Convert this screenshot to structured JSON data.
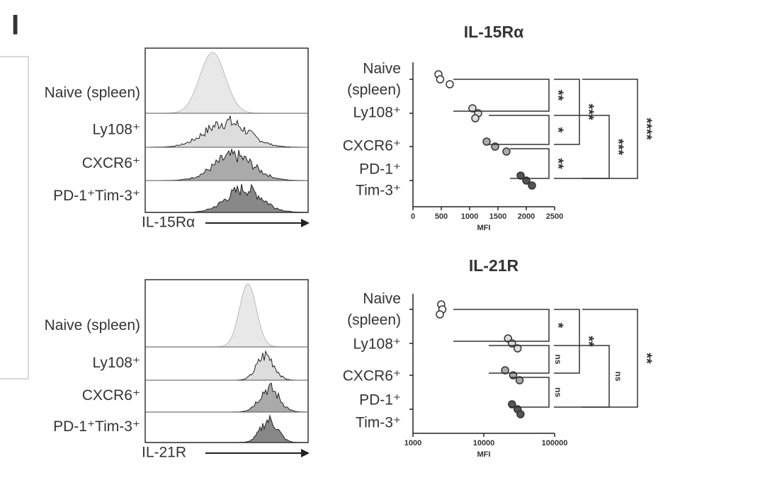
{
  "panel_label": "I",
  "histograms": [
    {
      "labels": [
        "Naive (spleen)",
        "Ly108⁺",
        "CXCR6⁺",
        "PD-1⁺Tim-3⁺"
      ],
      "axis_label": "IL-15Rα"
    },
    {
      "labels": [
        "Naive (spleen)",
        "Ly108⁺",
        "CXCR6⁺",
        "PD-1⁺Tim-3⁺"
      ],
      "axis_label": "IL-21R"
    }
  ],
  "chart_data": [
    {
      "type": "dot",
      "title": "IL-15Rα",
      "categories": [
        [
          "Naive",
          "(spleen)"
        ],
        [
          "Ly108⁺"
        ],
        [
          "CXCR6⁺"
        ],
        [
          "PD-1⁺",
          "Tim-3⁺"
        ]
      ],
      "values": [
        [
          450,
          480,
          650
        ],
        [
          1050,
          1150,
          1100
        ],
        [
          1300,
          1450,
          1650
        ],
        [
          1900,
          2000,
          2100
        ]
      ],
      "xlim": [
        0,
        2500
      ],
      "xticks": [
        0,
        500,
        1000,
        1500,
        2000,
        2500
      ],
      "xlabel": "MFI",
      "annotations": [
        "**",
        "*",
        "**",
        "***",
        "***",
        "****"
      ]
    },
    {
      "type": "dot",
      "title": "IL-21R",
      "log_scale": true,
      "categories": [
        [
          "Naive",
          "(spleen)"
        ],
        [
          "Ly108⁺"
        ],
        [
          "CXCR6⁺"
        ],
        [
          "PD-1⁺",
          "Tim-3⁺"
        ]
      ],
      "values": [
        [
          2500,
          2600,
          2400
        ],
        [
          22000,
          25000,
          30000
        ],
        [
          20000,
          26000,
          32000
        ],
        [
          25000,
          30000,
          33000
        ]
      ],
      "xlim": [
        1000,
        100000
      ],
      "xticks": [
        1000,
        10000,
        100000
      ],
      "xlabel": "MFI",
      "annotations": [
        "*",
        "ns",
        "ns",
        "**",
        "ns",
        "**"
      ]
    }
  ]
}
